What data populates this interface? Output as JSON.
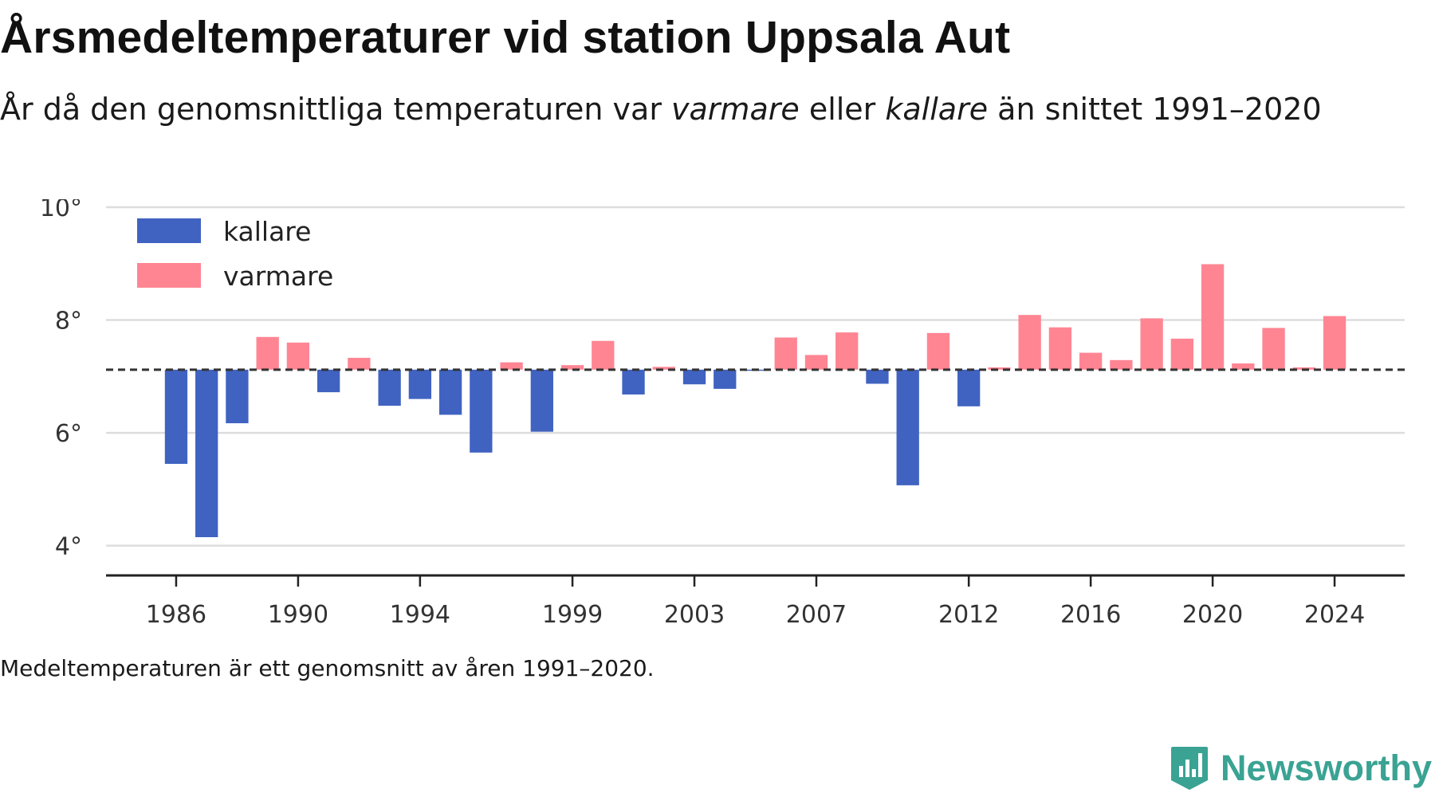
{
  "title": "Årsmedeltemperaturer vid station Uppsala Aut",
  "subtitle": {
    "part1": "År då den genomsnittliga temperaturen var ",
    "em1": "varmare",
    "part2": " eller ",
    "em2": "kallare",
    "part3": " än snittet 1991–2020"
  },
  "footnote": "Medeltemperaturen är ett genomsnitt av åren 1991–2020.",
  "brand": "Newsworthy",
  "colors": {
    "kallare": "#4063c1",
    "varmare": "#ff8593",
    "grid": "#dddddd",
    "axis": "#222222",
    "reference": "#333333",
    "brand": "#3aa393"
  },
  "chart_data": {
    "type": "bar",
    "reference_value": 7.12,
    "reference_style": "dashed",
    "ylim": [
      3.5,
      10
    ],
    "yticks": [
      4,
      6,
      8,
      10
    ],
    "ytick_labels": [
      "4°",
      "6°",
      "8°",
      "10°"
    ],
    "xlim": [
      1983.7,
      2026.3
    ],
    "xticks": [
      1986,
      1990,
      1994,
      1999,
      2003,
      2007,
      2012,
      2016,
      2020,
      2024
    ],
    "xtick_labels": [
      "1986",
      "1990",
      "1994",
      "1999",
      "2003",
      "2007",
      "2012",
      "2016",
      "2020",
      "2024"
    ],
    "grid": "horizontal",
    "legend_position": "top-left",
    "legend": [
      {
        "key": "kallare",
        "label": "kallare"
      },
      {
        "key": "varmare",
        "label": "varmare"
      }
    ],
    "years": [
      1986,
      1987,
      1988,
      1989,
      1990,
      1991,
      1992,
      1993,
      1994,
      1995,
      1996,
      1997,
      1998,
      1999,
      2000,
      2001,
      2002,
      2003,
      2004,
      2005,
      2006,
      2007,
      2008,
      2009,
      2010,
      2011,
      2012,
      2013,
      2014,
      2015,
      2016,
      2017,
      2018,
      2019,
      2020,
      2021,
      2022,
      2023,
      2024
    ],
    "values": [
      5.45,
      4.15,
      6.17,
      7.7,
      7.6,
      6.72,
      7.33,
      6.48,
      6.6,
      6.32,
      5.65,
      7.25,
      6.02,
      7.2,
      7.63,
      6.68,
      7.17,
      6.86,
      6.78,
      7.1,
      7.69,
      7.38,
      7.78,
      6.87,
      5.07,
      7.77,
      6.47,
      7.16,
      8.09,
      7.87,
      7.42,
      7.29,
      8.03,
      7.67,
      8.99,
      7.23,
      7.86,
      7.16,
      8.07
    ]
  }
}
